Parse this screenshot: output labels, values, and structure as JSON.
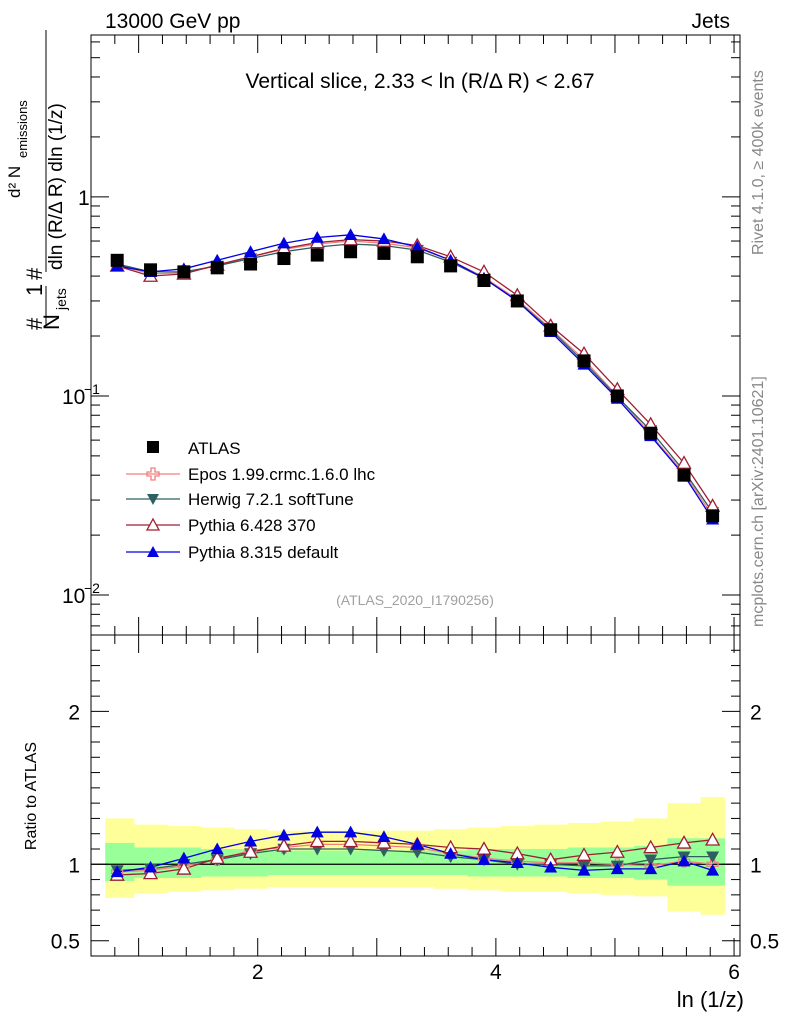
{
  "header": {
    "left": "13000 GeV pp",
    "right": "Jets"
  },
  "side_labels": {
    "rivet": "Rivet 4.1.0, ≥ 400k events",
    "mcplots": "mcplots.cern.ch [arXiv:2401.10621]"
  },
  "chart_data": [
    {
      "type": "scatter",
      "panel": "main",
      "title": "Vertical slice, 2.33 < ln (R/Δ R) < 2.67",
      "watermark": "(ATLAS_2020_I1790256)",
      "yscale": "log",
      "ylabel": "1/N_jets d²N_emissions / dln(R/ΔR) dln(1/z)",
      "xlabel": "ln (1/z)",
      "xlim": [
        0.6,
        6.05
      ],
      "ylim": [
        0.0063,
        6.5
      ],
      "yticks_labeled": [
        "10^-2",
        "10^-1",
        "1"
      ],
      "xticks_labeled": [
        "2",
        "4",
        "6"
      ],
      "x": [
        0.82,
        1.1,
        1.38,
        1.66,
        1.94,
        2.22,
        2.5,
        2.78,
        3.06,
        3.34,
        3.62,
        3.9,
        4.18,
        4.46,
        4.74,
        5.02,
        5.3,
        5.58,
        5.82
      ],
      "series": [
        {
          "name": "ATLAS",
          "color": "#000000",
          "marker": "square",
          "values": [
            0.48,
            0.43,
            0.42,
            0.44,
            0.46,
            0.49,
            0.51,
            0.53,
            0.52,
            0.5,
            0.45,
            0.38,
            0.3,
            0.215,
            0.15,
            0.1,
            0.065,
            0.04,
            0.025
          ]
        },
        {
          "name": "Epos 1.99.crmc.1.6.0 lhc",
          "color": "#f08080",
          "marker": "open-cross",
          "values": [
            0.455,
            0.41,
            0.415,
            0.45,
            0.5,
            0.545,
            0.58,
            0.6,
            0.585,
            0.555,
            0.48,
            0.395,
            0.305,
            0.218,
            0.152,
            0.1,
            0.064,
            0.041,
            0.025
          ]
        },
        {
          "name": "Herwig 7.2.1 softTune",
          "color": "#2f6060",
          "marker": "triangle-down",
          "values": [
            0.46,
            0.42,
            0.42,
            0.45,
            0.49,
            0.53,
            0.56,
            0.58,
            0.57,
            0.54,
            0.47,
            0.39,
            0.3,
            0.215,
            0.148,
            0.099,
            0.067,
            0.042,
            0.026
          ]
        },
        {
          "name": "Pythia 6.428 370",
          "color": "#a01e32",
          "marker": "open-triangle",
          "values": [
            0.45,
            0.4,
            0.41,
            0.455,
            0.5,
            0.55,
            0.59,
            0.61,
            0.6,
            0.57,
            0.5,
            0.42,
            0.32,
            0.225,
            0.163,
            0.108,
            0.072,
            0.046,
            0.028
          ]
        },
        {
          "name": "Pythia 8.315 default",
          "color": "#0000e0",
          "marker": "triangle",
          "values": [
            0.45,
            0.42,
            0.435,
            0.48,
            0.53,
            0.585,
            0.625,
            0.645,
            0.615,
            0.56,
            0.48,
            0.39,
            0.3,
            0.21,
            0.144,
            0.097,
            0.063,
            0.04,
            0.024
          ]
        }
      ]
    },
    {
      "type": "scatter",
      "panel": "ratio",
      "ylabel": "Ratio to ATLAS",
      "ylim": [
        0.4,
        2.5
      ],
      "yticks_labeled": [
        "0.5",
        "1",
        "2"
      ],
      "x": [
        0.82,
        1.1,
        1.38,
        1.66,
        1.94,
        2.22,
        2.5,
        2.78,
        3.06,
        3.34,
        3.62,
        3.9,
        4.18,
        4.46,
        4.74,
        5.02,
        5.3,
        5.58,
        5.82
      ],
      "bands": {
        "edges": [
          0.72,
          0.96,
          1.24,
          1.52,
          1.8,
          2.08,
          2.36,
          2.64,
          2.92,
          3.2,
          3.48,
          3.76,
          4.04,
          4.32,
          4.6,
          4.88,
          5.16,
          5.44,
          5.72,
          5.92
        ],
        "inner": {
          "color": "#99ff99",
          "low": [
            0.89,
            0.91,
            0.91,
            0.92,
            0.92,
            0.93,
            0.93,
            0.93,
            0.93,
            0.93,
            0.93,
            0.92,
            0.92,
            0.92,
            0.91,
            0.91,
            0.9,
            0.86,
            0.86
          ],
          "high": [
            1.14,
            1.11,
            1.11,
            1.1,
            1.1,
            1.09,
            1.09,
            1.09,
            1.09,
            1.09,
            1.09,
            1.1,
            1.1,
            1.1,
            1.11,
            1.11,
            1.12,
            1.17,
            1.17
          ]
        },
        "outer": {
          "color": "#ffff99",
          "low": [
            0.78,
            0.81,
            0.82,
            0.83,
            0.84,
            0.85,
            0.85,
            0.85,
            0.85,
            0.85,
            0.84,
            0.83,
            0.82,
            0.82,
            0.81,
            0.8,
            0.79,
            0.69,
            0.67
          ],
          "high": [
            1.3,
            1.26,
            1.25,
            1.24,
            1.23,
            1.22,
            1.22,
            1.22,
            1.22,
            1.22,
            1.23,
            1.24,
            1.25,
            1.26,
            1.27,
            1.28,
            1.3,
            1.4,
            1.44
          ]
        }
      },
      "series": [
        {
          "name": "Epos 1.99.crmc.1.6.0 lhc",
          "color": "#f08080",
          "marker": "open-cross",
          "values": [
            0.95,
            0.96,
            0.99,
            1.03,
            1.09,
            1.11,
            1.13,
            1.13,
            1.12,
            1.11,
            1.07,
            1.04,
            1.02,
            1.01,
            1.01,
            1.0,
            0.99,
            1.02,
            1.0
          ]
        },
        {
          "name": "Herwig 7.2.1 softTune",
          "color": "#2f6060",
          "marker": "triangle-down",
          "values": [
            0.96,
            0.97,
            1.0,
            1.03,
            1.07,
            1.1,
            1.1,
            1.1,
            1.09,
            1.08,
            1.05,
            1.03,
            1.0,
            1.0,
            0.99,
            0.99,
            1.03,
            1.05,
            1.05
          ]
        },
        {
          "name": "Pythia 6.428 370",
          "color": "#a01e32",
          "marker": "open-triangle",
          "values": [
            0.93,
            0.94,
            0.97,
            1.04,
            1.08,
            1.12,
            1.15,
            1.15,
            1.14,
            1.13,
            1.11,
            1.1,
            1.07,
            1.03,
            1.06,
            1.08,
            1.11,
            1.14,
            1.16
          ]
        },
        {
          "name": "Pythia 8.315 default",
          "color": "#0000e0",
          "marker": "triangle",
          "values": [
            0.95,
            0.98,
            1.04,
            1.1,
            1.15,
            1.19,
            1.21,
            1.21,
            1.18,
            1.13,
            1.07,
            1.03,
            1.01,
            0.98,
            0.96,
            0.97,
            0.97,
            1.02,
            0.96
          ]
        }
      ]
    }
  ]
}
